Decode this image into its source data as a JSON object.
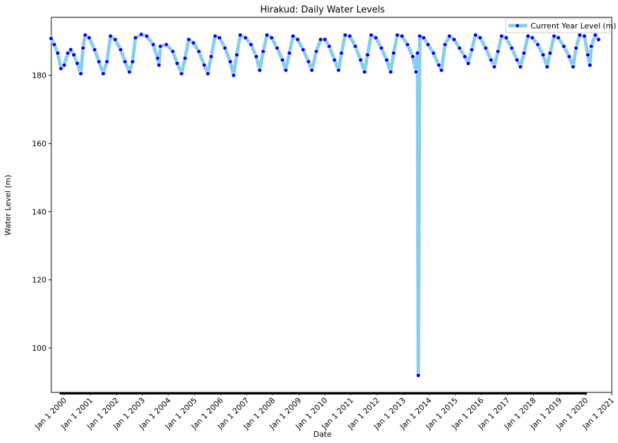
{
  "chart_data": {
    "type": "line",
    "title": "Hirakud: Daily Water Levels",
    "xlabel": "Date",
    "ylabel": "Water Level (m)",
    "xlim": [
      "1999-07-04",
      "2021-01-01"
    ],
    "ylim": [
      87,
      197
    ],
    "x_tick_labels": [
      "Jan 1 2000",
      "Jan 1 2001",
      "Jan 1 2002",
      "Jan 1 2003",
      "Jan 1 2004",
      "Jan 1 2005",
      "Jan 1 2006",
      "Jan 1 2007",
      "Jan 1 2008",
      "Jan 1 2009",
      "Jan 1 2010",
      "Jan 1 2011",
      "Jan 1 2012",
      "Jan 1 2013",
      "Jan 1 2014",
      "Jan 1 2015",
      "Jan 1 2016",
      "Jan 1 2017",
      "Jan 1 2018",
      "Jan 1 2019",
      "Jan 1 2020",
      "Jan 1 2021"
    ],
    "y_ticks": [
      100,
      120,
      140,
      160,
      180
    ],
    "grid": false,
    "legend": {
      "position": "upper-right",
      "entries": [
        "Current Year Level (m)"
      ]
    },
    "series": [
      {
        "name": "Current Year Level (m)",
        "line_color": "#87CEEB",
        "marker_color": "#0000FF",
        "points": [
          [
            "1999-07-01",
            190.8
          ],
          [
            "1999-08-15",
            189.0
          ],
          [
            "1999-10-01",
            186.5
          ],
          [
            "1999-11-15",
            182.0
          ],
          [
            "2000-01-01",
            183.0
          ],
          [
            "2000-02-20",
            186.5
          ],
          [
            "2000-04-01",
            187.5
          ],
          [
            "2000-05-15",
            186.0
          ],
          [
            "2000-07-01",
            183.5
          ],
          [
            "2000-08-20",
            180.5
          ],
          [
            "2000-09-20",
            188.0
          ],
          [
            "2000-10-20",
            191.8
          ],
          [
            "2000-12-15",
            191.0
          ],
          [
            "2001-03-01",
            187.5
          ],
          [
            "2001-05-01",
            184.0
          ],
          [
            "2001-07-01",
            180.5
          ],
          [
            "2001-08-20",
            184.0
          ],
          [
            "2001-10-10",
            191.5
          ],
          [
            "2001-12-15",
            190.5
          ],
          [
            "2002-03-01",
            187.5
          ],
          [
            "2002-05-01",
            184.0
          ],
          [
            "2002-07-01",
            181.0
          ],
          [
            "2002-08-15",
            184.0
          ],
          [
            "2002-09-25",
            191.0
          ],
          [
            "2002-12-15",
            192.0
          ],
          [
            "2003-03-01",
            191.5
          ],
          [
            "2003-06-01",
            189.0
          ],
          [
            "2003-08-01",
            185.0
          ],
          [
            "2003-08-20",
            183.0
          ],
          [
            "2003-09-10",
            188.5
          ],
          [
            "2003-12-01",
            189.0
          ],
          [
            "2004-03-01",
            187.0
          ],
          [
            "2004-05-01",
            183.5
          ],
          [
            "2004-07-01",
            180.5
          ],
          [
            "2004-08-20",
            185.0
          ],
          [
            "2004-10-10",
            190.5
          ],
          [
            "2004-12-15",
            189.5
          ],
          [
            "2005-03-01",
            187.0
          ],
          [
            "2005-05-15",
            183.0
          ],
          [
            "2005-07-05",
            180.5
          ],
          [
            "2005-08-20",
            185.5
          ],
          [
            "2005-10-15",
            191.5
          ],
          [
            "2005-12-15",
            191.0
          ],
          [
            "2006-03-01",
            188.0
          ],
          [
            "2006-05-15",
            184.0
          ],
          [
            "2006-07-01",
            180.0
          ],
          [
            "2006-08-15",
            186.0
          ],
          [
            "2006-10-01",
            191.8
          ],
          [
            "2006-12-15",
            191.0
          ],
          [
            "2007-03-01",
            189.0
          ],
          [
            "2007-05-15",
            185.5
          ],
          [
            "2007-07-01",
            181.5
          ],
          [
            "2007-08-20",
            187.0
          ],
          [
            "2007-10-10",
            191.8
          ],
          [
            "2007-12-15",
            191.0
          ],
          [
            "2008-03-01",
            188.0
          ],
          [
            "2008-05-15",
            184.5
          ],
          [
            "2008-07-01",
            181.5
          ],
          [
            "2008-08-20",
            186.5
          ],
          [
            "2008-10-10",
            191.5
          ],
          [
            "2008-12-15",
            190.5
          ],
          [
            "2009-03-01",
            187.5
          ],
          [
            "2009-05-15",
            184.0
          ],
          [
            "2009-07-01",
            181.5
          ],
          [
            "2009-09-01",
            187.0
          ],
          [
            "2009-11-01",
            190.5
          ],
          [
            "2010-01-01",
            190.5
          ],
          [
            "2010-03-01",
            188.5
          ],
          [
            "2010-05-15",
            184.5
          ],
          [
            "2010-07-10",
            181.5
          ],
          [
            "2010-08-20",
            186.5
          ],
          [
            "2010-10-10",
            191.8
          ],
          [
            "2010-12-15",
            191.5
          ],
          [
            "2011-03-01",
            188.5
          ],
          [
            "2011-05-15",
            184.5
          ],
          [
            "2011-07-10",
            181.0
          ],
          [
            "2011-08-20",
            186.0
          ],
          [
            "2011-10-10",
            191.8
          ],
          [
            "2011-12-15",
            191.0
          ],
          [
            "2012-03-01",
            188.0
          ],
          [
            "2012-05-15",
            184.5
          ],
          [
            "2012-07-10",
            181.0
          ],
          [
            "2012-08-20",
            186.5
          ],
          [
            "2012-10-10",
            191.8
          ],
          [
            "2012-12-15",
            191.5
          ],
          [
            "2013-03-01",
            189.0
          ],
          [
            "2013-05-15",
            185.5
          ],
          [
            "2013-07-01",
            181.0
          ],
          [
            "2013-07-20",
            186.5
          ],
          [
            "2013-08-01",
            92.0
          ],
          [
            "2013-08-20",
            191.5
          ],
          [
            "2013-10-15",
            191.0
          ],
          [
            "2013-12-15",
            189.0
          ],
          [
            "2014-03-01",
            186.5
          ],
          [
            "2014-05-15",
            183.0
          ],
          [
            "2014-06-20",
            181.5
          ],
          [
            "2014-08-10",
            189.0
          ],
          [
            "2014-10-10",
            191.5
          ],
          [
            "2014-12-15",
            190.5
          ],
          [
            "2015-03-01",
            188.0
          ],
          [
            "2015-05-15",
            185.5
          ],
          [
            "2015-07-01",
            183.5
          ],
          [
            "2015-08-20",
            187.5
          ],
          [
            "2015-10-10",
            191.8
          ],
          [
            "2015-12-15",
            191.0
          ],
          [
            "2016-03-01",
            188.0
          ],
          [
            "2016-05-15",
            184.5
          ],
          [
            "2016-07-01",
            182.5
          ],
          [
            "2016-08-20",
            187.0
          ],
          [
            "2016-10-10",
            191.5
          ],
          [
            "2016-12-15",
            191.0
          ],
          [
            "2017-03-01",
            188.0
          ],
          [
            "2017-05-15",
            184.5
          ],
          [
            "2017-07-01",
            182.5
          ],
          [
            "2017-08-20",
            186.5
          ],
          [
            "2017-10-15",
            191.5
          ],
          [
            "2017-12-15",
            191.0
          ],
          [
            "2018-03-01",
            189.0
          ],
          [
            "2018-05-15",
            186.0
          ],
          [
            "2018-07-10",
            182.5
          ],
          [
            "2018-08-20",
            186.5
          ],
          [
            "2018-10-15",
            191.5
          ],
          [
            "2018-12-15",
            191.0
          ],
          [
            "2019-03-01",
            188.5
          ],
          [
            "2019-05-15",
            185.5
          ],
          [
            "2019-07-10",
            182.5
          ],
          [
            "2019-08-20",
            188.0
          ],
          [
            "2019-10-10",
            191.8
          ],
          [
            "2019-12-15",
            191.5
          ],
          [
            "2020-02-01",
            186.0
          ],
          [
            "2020-03-01",
            183.0
          ],
          [
            "2020-03-20",
            188.5
          ],
          [
            "2020-05-15",
            191.8
          ],
          [
            "2020-06-30",
            190.5
          ]
        ]
      }
    ]
  }
}
